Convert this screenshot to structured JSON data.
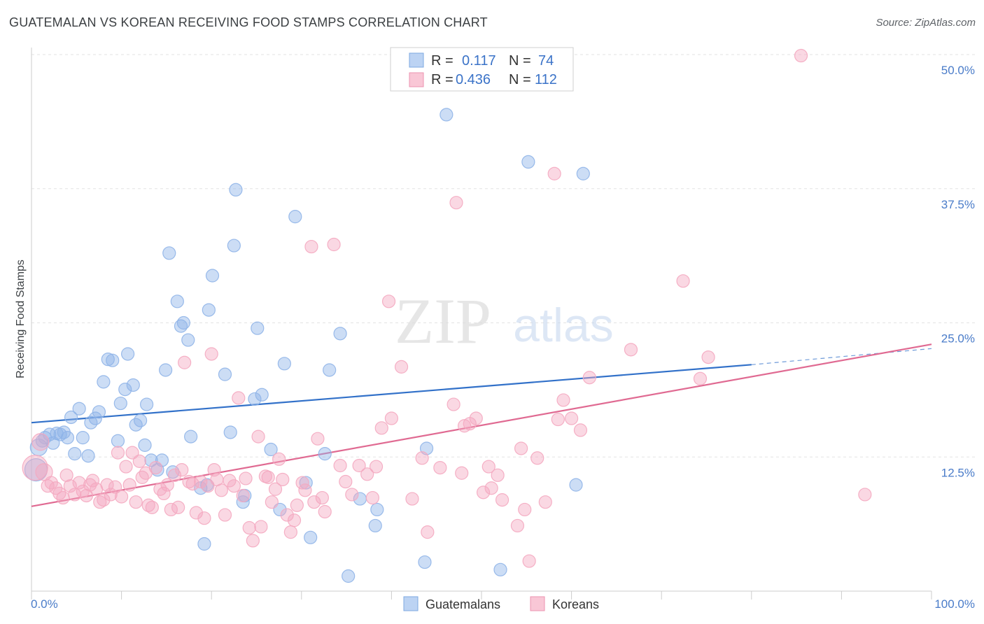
{
  "title": "GUATEMALAN VS KOREAN RECEIVING FOOD STAMPS CORRELATION CHART",
  "source": "Source: ZipAtlas.com",
  "watermark": {
    "zip": "ZIP",
    "atlas": "atlas"
  },
  "chart_data": {
    "type": "scatter",
    "ylabel": "Receiving Food Stamps",
    "xlim": [
      0,
      100
    ],
    "ylim": [
      0,
      50
    ],
    "x_tick_labels": [
      "0.0%",
      "100.0%"
    ],
    "y_ticks": [
      {
        "value": 12.5,
        "label": "12.5%"
      },
      {
        "value": 25.0,
        "label": "25.0%"
      },
      {
        "value": 37.5,
        "label": "37.5%"
      },
      {
        "value": 50.0,
        "label": "50.0%"
      }
    ],
    "grid": true,
    "legend": {
      "placement": "top-center",
      "rows": [
        {
          "r_label": "R =",
          "r_value": "0.117",
          "n_label": "N =",
          "n_value": "74"
        },
        {
          "r_label": "R =",
          "r_value": "0.436",
          "n_label": "N =",
          "n_value": "112"
        }
      ]
    },
    "series": [
      {
        "name": "Guatemalans",
        "color": "#8fb4e8",
        "line_color": "#3271c9",
        "trend": {
          "x0": 0,
          "y0": 15.7,
          "x1": 80,
          "y1": 21.1,
          "dash_to_x": 100,
          "dash_to_y": 22.6
        },
        "points": [
          [
            0.5,
            11.3,
            16
          ],
          [
            0.8,
            13.4,
            12
          ],
          [
            1.2,
            14.0,
            9
          ],
          [
            1.5,
            14.3,
            9
          ],
          [
            2.0,
            14.6,
            9
          ],
          [
            2.4,
            13.8,
            9
          ],
          [
            2.8,
            14.7,
            9
          ],
          [
            3.2,
            14.6,
            9
          ],
          [
            3.6,
            14.8,
            9
          ],
          [
            4.0,
            14.3,
            9
          ],
          [
            4.4,
            16.2,
            9
          ],
          [
            4.8,
            12.8,
            9
          ],
          [
            5.3,
            17.0,
            9
          ],
          [
            5.7,
            14.3,
            9
          ],
          [
            6.3,
            12.6,
            9
          ],
          [
            6.6,
            15.7,
            9
          ],
          [
            7.1,
            16.1,
            9
          ],
          [
            7.5,
            16.7,
            9
          ],
          [
            8.0,
            19.5,
            9
          ],
          [
            8.5,
            21.6,
            9
          ],
          [
            9.0,
            21.5,
            9
          ],
          [
            9.6,
            14.0,
            9
          ],
          [
            9.9,
            17.5,
            9
          ],
          [
            10.4,
            18.8,
            9
          ],
          [
            10.7,
            22.1,
            9
          ],
          [
            11.3,
            19.2,
            9
          ],
          [
            11.6,
            15.5,
            9
          ],
          [
            12.1,
            15.9,
            9
          ],
          [
            12.6,
            13.6,
            9
          ],
          [
            12.8,
            17.4,
            9
          ],
          [
            13.3,
            12.2,
            9
          ],
          [
            14.0,
            11.3,
            9
          ],
          [
            14.5,
            12.2,
            9
          ],
          [
            14.9,
            20.6,
            9
          ],
          [
            15.3,
            31.5,
            9
          ],
          [
            15.7,
            11.1,
            9
          ],
          [
            16.2,
            27.0,
            9
          ],
          [
            16.6,
            24.7,
            9
          ],
          [
            16.9,
            25.0,
            9
          ],
          [
            17.4,
            23.4,
            9
          ],
          [
            17.7,
            14.4,
            9
          ],
          [
            18.8,
            9.6,
            9
          ],
          [
            19.2,
            4.4,
            9
          ],
          [
            19.5,
            9.9,
            9
          ],
          [
            19.7,
            26.2,
            9
          ],
          [
            20.1,
            29.4,
            9
          ],
          [
            21.5,
            20.2,
            9
          ],
          [
            22.1,
            14.8,
            9
          ],
          [
            22.5,
            32.2,
            9
          ],
          [
            22.7,
            37.4,
            9
          ],
          [
            23.5,
            8.3,
            9
          ],
          [
            23.7,
            8.9,
            9
          ],
          [
            24.8,
            17.9,
            9
          ],
          [
            25.1,
            24.5,
            9
          ],
          [
            25.6,
            18.3,
            9
          ],
          [
            26.6,
            13.2,
            9
          ],
          [
            27.6,
            7.6,
            9
          ],
          [
            28.1,
            21.2,
            9
          ],
          [
            29.3,
            34.9,
            9
          ],
          [
            30.5,
            10.1,
            9
          ],
          [
            31.0,
            5.0,
            9
          ],
          [
            32.6,
            12.8,
            9
          ],
          [
            33.1,
            20.6,
            9
          ],
          [
            34.3,
            24.0,
            9
          ],
          [
            35.2,
            1.4,
            9
          ],
          [
            36.5,
            8.6,
            9
          ],
          [
            38.2,
            6.1,
            9
          ],
          [
            38.4,
            7.6,
            9
          ],
          [
            43.7,
            2.7,
            9
          ],
          [
            43.9,
            13.3,
            9
          ],
          [
            46.1,
            44.4,
            9
          ],
          [
            52.1,
            2.0,
            9
          ],
          [
            55.2,
            40.0,
            9
          ],
          [
            60.5,
            9.9,
            9
          ],
          [
            61.3,
            38.9,
            9
          ]
        ]
      },
      {
        "name": "Koreans",
        "color": "#f4a8c0",
        "line_color": "#e06a92",
        "trend": {
          "x0": 0,
          "y0": 7.9,
          "x1": 100,
          "y1": 23.0
        },
        "points": [
          [
            0.4,
            11.5,
            18
          ],
          [
            1.0,
            13.9,
            12
          ],
          [
            1.4,
            11.1,
            12
          ],
          [
            1.8,
            9.8,
            9
          ],
          [
            2.2,
            10.1,
            9
          ],
          [
            2.7,
            9.6,
            9
          ],
          [
            3.1,
            9.1,
            9
          ],
          [
            3.5,
            8.7,
            9
          ],
          [
            3.9,
            10.8,
            9
          ],
          [
            4.3,
            9.8,
            9
          ],
          [
            4.8,
            9.0,
            9
          ],
          [
            5.3,
            10.1,
            9
          ],
          [
            5.7,
            9.3,
            9
          ],
          [
            6.1,
            8.9,
            9
          ],
          [
            6.5,
            9.9,
            9
          ],
          [
            6.8,
            10.3,
            9
          ],
          [
            7.2,
            9.5,
            9
          ],
          [
            7.6,
            8.3,
            9
          ],
          [
            8.0,
            8.5,
            9
          ],
          [
            8.4,
            9.9,
            9
          ],
          [
            8.8,
            9.0,
            9
          ],
          [
            9.3,
            9.7,
            9
          ],
          [
            9.6,
            12.9,
            9
          ],
          [
            10.0,
            8.8,
            9
          ],
          [
            10.5,
            11.6,
            9
          ],
          [
            10.9,
            9.9,
            9
          ],
          [
            11.2,
            12.9,
            9
          ],
          [
            11.6,
            8.3,
            9
          ],
          [
            12.0,
            12.1,
            9
          ],
          [
            12.3,
            10.6,
            9
          ],
          [
            12.7,
            11.0,
            9
          ],
          [
            13.0,
            8.0,
            9
          ],
          [
            13.4,
            7.8,
            9
          ],
          [
            13.8,
            11.5,
            9
          ],
          [
            14.3,
            9.5,
            9
          ],
          [
            14.7,
            9.1,
            9
          ],
          [
            15.1,
            9.9,
            9
          ],
          [
            15.5,
            7.6,
            9
          ],
          [
            15.9,
            10.8,
            9
          ],
          [
            16.3,
            7.8,
            9
          ],
          [
            16.7,
            11.3,
            9
          ],
          [
            17.0,
            21.3,
            9
          ],
          [
            17.5,
            10.2,
            9
          ],
          [
            17.9,
            10.0,
            9
          ],
          [
            18.3,
            7.3,
            9
          ],
          [
            18.8,
            10.2,
            9
          ],
          [
            19.2,
            6.8,
            9
          ],
          [
            19.6,
            9.8,
            9
          ],
          [
            20.0,
            22.1,
            9
          ],
          [
            20.3,
            11.3,
            9
          ],
          [
            20.6,
            10.4,
            9
          ],
          [
            21.1,
            9.4,
            9
          ],
          [
            21.5,
            7.1,
            9
          ],
          [
            22.0,
            10.3,
            9
          ],
          [
            22.5,
            9.8,
            9
          ],
          [
            23.0,
            18.0,
            9
          ],
          [
            23.5,
            8.9,
            9
          ],
          [
            23.8,
            10.5,
            9
          ],
          [
            24.2,
            5.9,
            9
          ],
          [
            24.6,
            4.7,
            9
          ],
          [
            25.2,
            14.4,
            9
          ],
          [
            25.5,
            6.0,
            9
          ],
          [
            26.0,
            10.7,
            9
          ],
          [
            26.3,
            10.6,
            9
          ],
          [
            26.7,
            8.3,
            9
          ],
          [
            27.1,
            9.5,
            9
          ],
          [
            27.5,
            12.3,
            9
          ],
          [
            27.9,
            10.4,
            9
          ],
          [
            28.4,
            7.1,
            9
          ],
          [
            28.8,
            5.5,
            9
          ],
          [
            29.2,
            6.6,
            9
          ],
          [
            29.5,
            8.0,
            9
          ],
          [
            30.1,
            10.1,
            9
          ],
          [
            30.4,
            9.4,
            9
          ],
          [
            31.1,
            32.1,
            9
          ],
          [
            31.4,
            8.3,
            9
          ],
          [
            31.8,
            14.2,
            9
          ],
          [
            32.3,
            8.7,
            9
          ],
          [
            32.6,
            7.4,
            9
          ],
          [
            33.6,
            32.3,
            9
          ],
          [
            34.3,
            11.7,
            9
          ],
          [
            34.9,
            10.2,
            9
          ],
          [
            35.6,
            9.0,
            9
          ],
          [
            36.4,
            11.7,
            9
          ],
          [
            37.3,
            10.9,
            9
          ],
          [
            37.9,
            8.7,
            9
          ],
          [
            38.3,
            11.6,
            9
          ],
          [
            38.9,
            15.2,
            9
          ],
          [
            39.7,
            27.0,
            9
          ],
          [
            40.0,
            16.1,
            9
          ],
          [
            41.1,
            20.9,
            9
          ],
          [
            42.3,
            8.6,
            9
          ],
          [
            43.4,
            12.4,
            9
          ],
          [
            44.0,
            5.5,
            9
          ],
          [
            45.4,
            11.5,
            9
          ],
          [
            46.9,
            17.4,
            9
          ],
          [
            47.2,
            36.2,
            9
          ],
          [
            47.8,
            11.0,
            9
          ],
          [
            48.1,
            15.4,
            9
          ],
          [
            48.7,
            15.6,
            9
          ],
          [
            49.4,
            16.1,
            9
          ],
          [
            50.2,
            9.2,
            9
          ],
          [
            50.8,
            11.6,
            9
          ],
          [
            51.1,
            9.6,
            9
          ],
          [
            51.8,
            10.8,
            9
          ],
          [
            52.3,
            8.5,
            9
          ],
          [
            54.0,
            6.1,
            9
          ],
          [
            54.4,
            13.3,
            9
          ],
          [
            54.8,
            7.6,
            9
          ],
          [
            55.3,
            2.8,
            9
          ],
          [
            56.2,
            12.4,
            9
          ],
          [
            57.1,
            8.3,
            9
          ],
          [
            58.1,
            38.9,
            9
          ],
          [
            58.5,
            16.0,
            9
          ],
          [
            59.1,
            17.8,
            9
          ],
          [
            60.0,
            16.1,
            9
          ],
          [
            61.0,
            15.0,
            9
          ],
          [
            62.0,
            19.9,
            9
          ],
          [
            66.6,
            22.5,
            9
          ],
          [
            72.4,
            28.9,
            9
          ],
          [
            74.3,
            19.8,
            9
          ],
          [
            75.2,
            21.8,
            9
          ],
          [
            85.5,
            49.9,
            9
          ],
          [
            92.6,
            9.0,
            9
          ]
        ]
      }
    ]
  }
}
